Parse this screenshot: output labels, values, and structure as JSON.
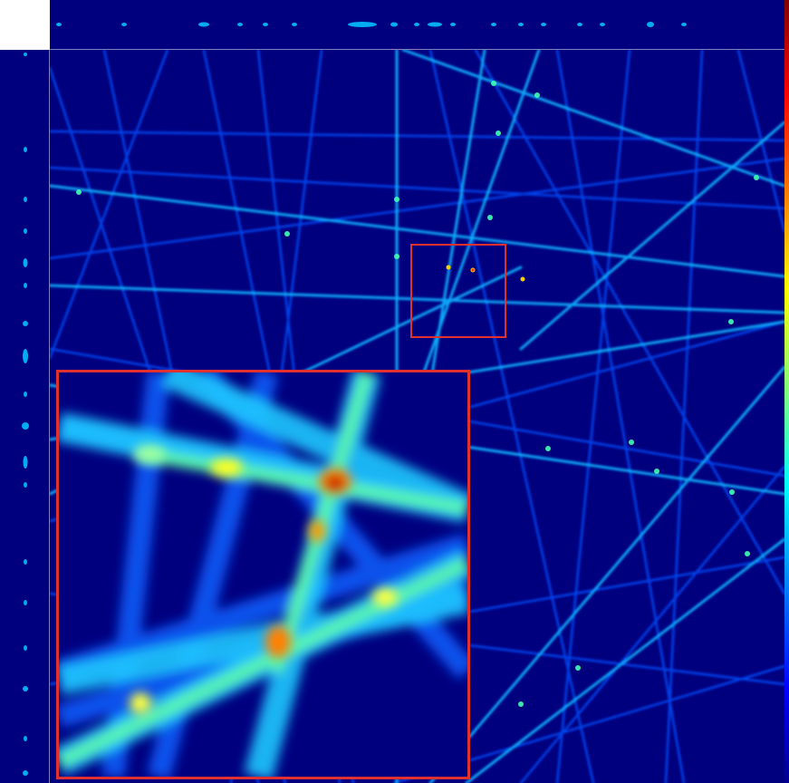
{
  "figure": {
    "colormap": "jet",
    "background_color": "#00007f",
    "roi_box_color": "#e03030",
    "colorbar_colors": [
      "#800000",
      "#ff0000",
      "#ff8000",
      "#ffff00",
      "#80ff80",
      "#00ffff",
      "#0080ff",
      "#0000ff",
      "#00008f"
    ]
  }
}
